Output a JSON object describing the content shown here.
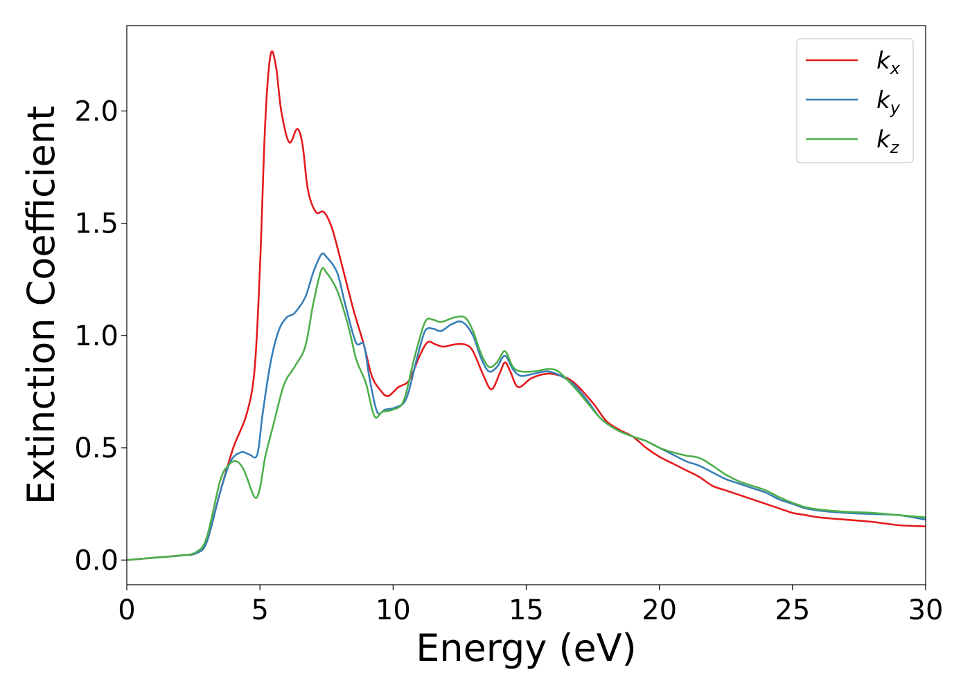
{
  "chart_data": {
    "type": "line",
    "title": "",
    "xlabel": "Energy (eV)",
    "ylabel": "Extinction Coefficient",
    "xlim": [
      0,
      30
    ],
    "ylim": [
      -0.11,
      2.38
    ],
    "xticks": [
      0,
      5,
      10,
      15,
      20,
      25,
      30
    ],
    "xtick_labels": [
      "0",
      "5",
      "10",
      "15",
      "20",
      "25",
      "30"
    ],
    "yticks": [
      0.0,
      0.5,
      1.0,
      1.5,
      2.0
    ],
    "ytick_labels": [
      "0.0",
      "0.5",
      "1.0",
      "1.5",
      "2.0"
    ],
    "grid": false,
    "legend_position": "top-right",
    "series": [
      {
        "name": "k_x",
        "label_base": "k",
        "label_sub": "x",
        "color": "#e41a1c",
        "points": [
          [
            0,
            0
          ],
          [
            1,
            0.01
          ],
          [
            2,
            0.02
          ],
          [
            2.6,
            0.03
          ],
          [
            3,
            0.08
          ],
          [
            3.5,
            0.3
          ],
          [
            4,
            0.5
          ],
          [
            4.5,
            0.65
          ],
          [
            4.8,
            0.85
          ],
          [
            5.0,
            1.3
          ],
          [
            5.2,
            1.95
          ],
          [
            5.4,
            2.25
          ],
          [
            5.6,
            2.2
          ],
          [
            5.8,
            2.0
          ],
          [
            6.1,
            1.86
          ],
          [
            6.4,
            1.92
          ],
          [
            6.6,
            1.85
          ],
          [
            6.8,
            1.65
          ],
          [
            7.1,
            1.55
          ],
          [
            7.4,
            1.55
          ],
          [
            7.7,
            1.48
          ],
          [
            8.0,
            1.35
          ],
          [
            8.5,
            1.12
          ],
          [
            8.9,
            0.96
          ],
          [
            9.2,
            0.82
          ],
          [
            9.5,
            0.76
          ],
          [
            9.8,
            0.73
          ],
          [
            10.2,
            0.77
          ],
          [
            10.6,
            0.8
          ],
          [
            11.0,
            0.91
          ],
          [
            11.3,
            0.97
          ],
          [
            11.6,
            0.96
          ],
          [
            11.9,
            0.95
          ],
          [
            12.3,
            0.96
          ],
          [
            12.7,
            0.96
          ],
          [
            13.0,
            0.93
          ],
          [
            13.4,
            0.82
          ],
          [
            13.7,
            0.76
          ],
          [
            14.0,
            0.83
          ],
          [
            14.2,
            0.88
          ],
          [
            14.4,
            0.84
          ],
          [
            14.7,
            0.77
          ],
          [
            15.2,
            0.81
          ],
          [
            15.8,
            0.83
          ],
          [
            16.3,
            0.82
          ],
          [
            16.8,
            0.79
          ],
          [
            17.5,
            0.7
          ],
          [
            18.0,
            0.62
          ],
          [
            18.5,
            0.58
          ],
          [
            19.0,
            0.55
          ],
          [
            19.5,
            0.5
          ],
          [
            20.0,
            0.46
          ],
          [
            20.5,
            0.43
          ],
          [
            21.0,
            0.4
          ],
          [
            21.5,
            0.37
          ],
          [
            22.0,
            0.33
          ],
          [
            22.5,
            0.31
          ],
          [
            23.0,
            0.29
          ],
          [
            23.5,
            0.27
          ],
          [
            24.0,
            0.25
          ],
          [
            24.5,
            0.23
          ],
          [
            25.0,
            0.21
          ],
          [
            25.5,
            0.2
          ],
          [
            26.0,
            0.19
          ],
          [
            27.0,
            0.18
          ],
          [
            28.0,
            0.17
          ],
          [
            29.0,
            0.155
          ],
          [
            30.0,
            0.15
          ]
        ]
      },
      {
        "name": "k_y",
        "label_base": "k",
        "label_sub": "y",
        "color": "#377eb8",
        "points": [
          [
            0,
            0
          ],
          [
            1,
            0.01
          ],
          [
            2,
            0.02
          ],
          [
            2.6,
            0.03
          ],
          [
            3,
            0.08
          ],
          [
            3.5,
            0.3
          ],
          [
            3.9,
            0.44
          ],
          [
            4.3,
            0.48
          ],
          [
            4.6,
            0.47
          ],
          [
            4.9,
            0.47
          ],
          [
            5.1,
            0.65
          ],
          [
            5.4,
            0.88
          ],
          [
            5.7,
            1.02
          ],
          [
            6.0,
            1.08
          ],
          [
            6.3,
            1.1
          ],
          [
            6.7,
            1.17
          ],
          [
            7.0,
            1.28
          ],
          [
            7.3,
            1.36
          ],
          [
            7.5,
            1.35
          ],
          [
            7.9,
            1.28
          ],
          [
            8.2,
            1.14
          ],
          [
            8.6,
            0.97
          ],
          [
            8.9,
            0.96
          ],
          [
            9.1,
            0.82
          ],
          [
            9.4,
            0.66
          ],
          [
            9.7,
            0.67
          ],
          [
            10.1,
            0.68
          ],
          [
            10.5,
            0.72
          ],
          [
            10.9,
            0.9
          ],
          [
            11.2,
            1.02
          ],
          [
            11.5,
            1.03
          ],
          [
            11.8,
            1.02
          ],
          [
            12.2,
            1.05
          ],
          [
            12.6,
            1.06
          ],
          [
            13.0,
            1.0
          ],
          [
            13.3,
            0.9
          ],
          [
            13.6,
            0.84
          ],
          [
            13.9,
            0.86
          ],
          [
            14.2,
            0.91
          ],
          [
            14.5,
            0.85
          ],
          [
            14.8,
            0.82
          ],
          [
            15.3,
            0.83
          ],
          [
            15.8,
            0.84
          ],
          [
            16.3,
            0.82
          ],
          [
            16.8,
            0.78
          ],
          [
            17.3,
            0.71
          ],
          [
            17.8,
            0.63
          ],
          [
            18.4,
            0.58
          ],
          [
            19.0,
            0.55
          ],
          [
            19.5,
            0.53
          ],
          [
            20.0,
            0.5
          ],
          [
            20.5,
            0.47
          ],
          [
            21.0,
            0.44
          ],
          [
            21.5,
            0.42
          ],
          [
            22.0,
            0.39
          ],
          [
            22.5,
            0.36
          ],
          [
            23.0,
            0.34
          ],
          [
            23.5,
            0.32
          ],
          [
            24.0,
            0.3
          ],
          [
            24.5,
            0.27
          ],
          [
            25.0,
            0.25
          ],
          [
            25.5,
            0.23
          ],
          [
            26.0,
            0.22
          ],
          [
            27.0,
            0.21
          ],
          [
            28.0,
            0.205
          ],
          [
            29.0,
            0.2
          ],
          [
            30.0,
            0.18
          ]
        ]
      },
      {
        "name": "k_z",
        "label_base": "k",
        "label_sub": "z",
        "color": "#4daf4a",
        "points": [
          [
            0,
            0
          ],
          [
            1,
            0.01
          ],
          [
            2,
            0.02
          ],
          [
            2.6,
            0.035
          ],
          [
            3,
            0.1
          ],
          [
            3.5,
            0.35
          ],
          [
            3.8,
            0.42
          ],
          [
            4.1,
            0.44
          ],
          [
            4.4,
            0.4
          ],
          [
            4.8,
            0.28
          ],
          [
            5.0,
            0.32
          ],
          [
            5.2,
            0.46
          ],
          [
            5.5,
            0.6
          ],
          [
            5.9,
            0.78
          ],
          [
            6.3,
            0.86
          ],
          [
            6.7,
            0.95
          ],
          [
            7.0,
            1.14
          ],
          [
            7.3,
            1.29
          ],
          [
            7.5,
            1.28
          ],
          [
            7.9,
            1.2
          ],
          [
            8.3,
            1.05
          ],
          [
            8.6,
            0.9
          ],
          [
            8.8,
            0.84
          ],
          [
            9.0,
            0.78
          ],
          [
            9.3,
            0.64
          ],
          [
            9.6,
            0.66
          ],
          [
            10.0,
            0.67
          ],
          [
            10.4,
            0.71
          ],
          [
            10.8,
            0.9
          ],
          [
            11.2,
            1.06
          ],
          [
            11.5,
            1.07
          ],
          [
            11.8,
            1.06
          ],
          [
            12.3,
            1.08
          ],
          [
            12.7,
            1.08
          ],
          [
            13.0,
            1.02
          ],
          [
            13.3,
            0.92
          ],
          [
            13.6,
            0.86
          ],
          [
            13.9,
            0.88
          ],
          [
            14.2,
            0.93
          ],
          [
            14.5,
            0.86
          ],
          [
            14.8,
            0.84
          ],
          [
            15.3,
            0.84
          ],
          [
            15.8,
            0.85
          ],
          [
            16.2,
            0.84
          ],
          [
            16.8,
            0.77
          ],
          [
            17.3,
            0.7
          ],
          [
            17.8,
            0.63
          ],
          [
            18.4,
            0.58
          ],
          [
            19.0,
            0.55
          ],
          [
            19.5,
            0.53
          ],
          [
            20.0,
            0.5
          ],
          [
            20.5,
            0.48
          ],
          [
            21.0,
            0.465
          ],
          [
            21.5,
            0.455
          ],
          [
            22.0,
            0.42
          ],
          [
            22.5,
            0.38
          ],
          [
            23.0,
            0.35
          ],
          [
            23.5,
            0.33
          ],
          [
            24.0,
            0.31
          ],
          [
            24.5,
            0.28
          ],
          [
            25.0,
            0.255
          ],
          [
            25.5,
            0.235
          ],
          [
            26.0,
            0.225
          ],
          [
            27.0,
            0.215
          ],
          [
            28.0,
            0.21
          ],
          [
            29.0,
            0.2
          ],
          [
            30.0,
            0.19
          ]
        ]
      }
    ]
  }
}
